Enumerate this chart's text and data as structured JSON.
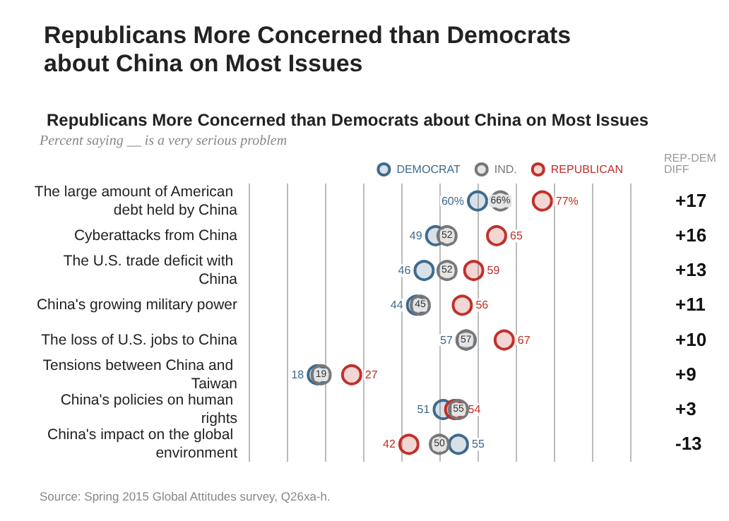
{
  "chart_data": {
    "type": "scatter",
    "orientation": "horizontal",
    "title": "Republicans More Concerned than Democrats about China on Most Issues",
    "subtitle": "Republicans More Concerned than Democrats about China on Most Issues",
    "categories": [
      "The large amount of American debt held by China",
      "Cyberattacks from China",
      "The U.S. trade deficit with China",
      "China's growing military power",
      "The loss of U.S. jobs to China",
      "Tensions between China and Taiwan",
      "China's policies on human rights",
      "China's impact on the global environment"
    ],
    "series": [
      {
        "name": "DEMOCRAT",
        "color": "#3e6a8e",
        "values": [
          60,
          49,
          46,
          44,
          57,
          18,
          51,
          55
        ],
        "value_labels": [
          "60%",
          "49",
          "46",
          "44",
          "57",
          "18",
          "51",
          "55"
        ]
      },
      {
        "name": "IND.",
        "color": "#777777",
        "values": [
          66,
          52,
          52,
          45,
          57,
          19,
          55,
          50
        ],
        "value_labels": [
          "66%",
          "52",
          "52",
          "45",
          "57",
          "19",
          "55",
          "50"
        ]
      },
      {
        "name": "REPUBLICAN",
        "color": "#c0302a",
        "values": [
          77,
          65,
          59,
          56,
          67,
          27,
          54,
          42
        ],
        "value_labels": [
          "77%",
          "65",
          "59",
          "56",
          "67",
          "27",
          "54",
          "42"
        ]
      }
    ],
    "xlim": [
      0,
      100
    ],
    "xticks": [
      {
        "value": 0,
        "label": null
      },
      {
        "value": 10,
        "label": null
      },
      {
        "value": 20,
        "label": null
      },
      {
        "value": 30,
        "label": null
      },
      {
        "value": 40,
        "label": null
      },
      {
        "value": 50,
        "label": null
      },
      {
        "value": 60,
        "label": null
      },
      {
        "value": 70,
        "label": null
      },
      {
        "value": 80,
        "label": null
      },
      {
        "value": 90,
        "label": null
      },
      {
        "value": 100,
        "label": null
      }
    ],
    "tick_labels": "y",
    "grid": "x",
    "legend": "top right",
    "marker": "circle",
    "annotations": [
      "Percent saying __ is a very serious problem",
      "REP-DEM DIFF",
      "+17",
      "+16",
      "+13",
      "+11",
      "+10",
      "+9",
      "+3",
      "-13",
      "Source: Spring 2015 Global Attitudes survey, Q26xa-h."
    ]
  }
}
